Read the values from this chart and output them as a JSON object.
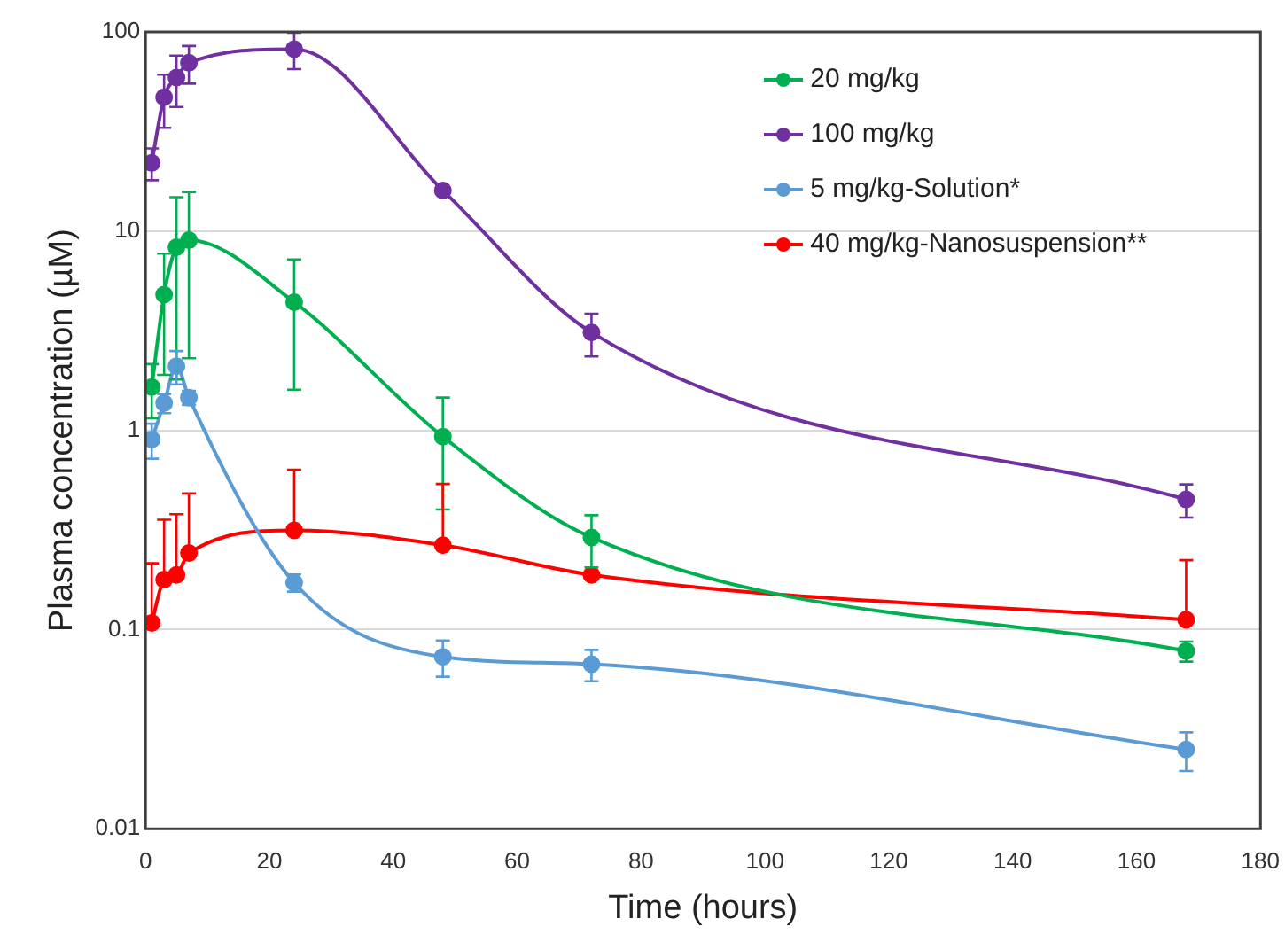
{
  "chart_data": {
    "type": "line",
    "xlabel": "Time (hours)",
    "ylabel": "Plasma concentration (µM)",
    "x": [
      1,
      3,
      5,
      7,
      24,
      48,
      72,
      168
    ],
    "xlim": [
      0,
      180
    ],
    "xticks": [
      0,
      20,
      40,
      60,
      80,
      100,
      120,
      140,
      160,
      180
    ],
    "ylim": [
      0.01,
      100
    ],
    "yticks": [
      0.01,
      0.1,
      1,
      10,
      100
    ],
    "log": true,
    "grid": "y",
    "legend": "top right",
    "marker": "circle",
    "line_style": "solid",
    "series": [
      {
        "name": "20 mg/kg",
        "color": "#00b050",
        "values": [
          1.65,
          4.8,
          8.3,
          9.0,
          4.4,
          0.93,
          0.29,
          0.078
        ],
        "errors": [
          0.5,
          2.9,
          6.5,
          6.7,
          2.8,
          0.53,
          0.085,
          0.009
        ]
      },
      {
        "name": "100 mg/kg",
        "color": "#7030a0",
        "values": [
          22,
          47,
          59,
          70,
          82,
          16,
          3.1,
          0.45
        ],
        "errors": [
          4,
          14,
          17,
          15,
          17,
          null,
          0.75,
          0.085
        ]
      },
      {
        "name": "5 mg/kg-Solution*",
        "color": "#5b9bd5",
        "values": [
          0.9,
          1.37,
          2.1,
          1.46,
          0.172,
          0.073,
          0.067,
          0.025
        ],
        "errors": [
          0.18,
          0.15,
          0.4,
          0.12,
          0.017,
          0.015,
          0.012,
          0.0055
        ]
      },
      {
        "name": "40 mg/kg-Nanosuspension**",
        "color": "#ff0000",
        "values": [
          0.108,
          0.178,
          0.188,
          0.242,
          0.315,
          0.265,
          0.188,
          0.112
        ],
        "errors": [
          [
            0.108,
            0.215
          ],
          [
            0.178,
            0.356
          ],
          [
            0.188,
            0.379
          ],
          [
            0.242,
            0.482
          ],
          [
            0.315,
            0.635
          ],
          [
            0.265,
            0.538
          ],
          null,
          [
            0.112,
            0.223
          ]
        ]
      }
    ]
  }
}
